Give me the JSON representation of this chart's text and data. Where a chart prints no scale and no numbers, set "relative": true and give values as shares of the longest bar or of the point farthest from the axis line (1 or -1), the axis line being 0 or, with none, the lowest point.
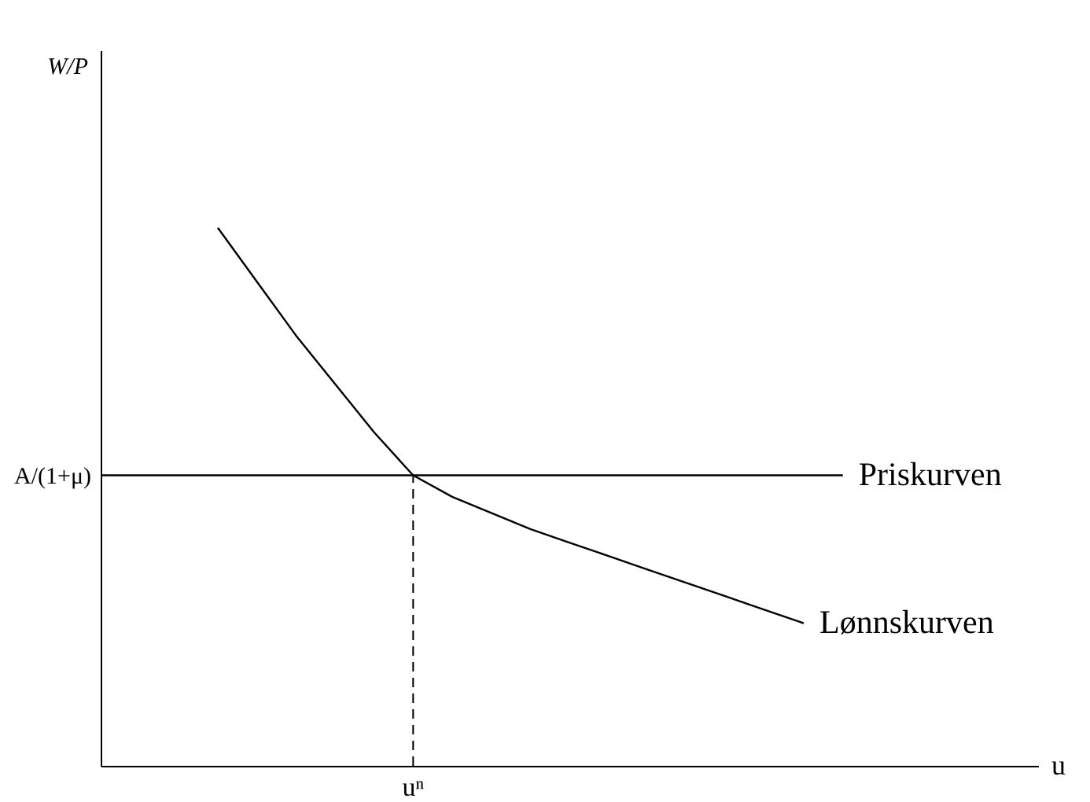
{
  "chart_data": {
    "type": "line",
    "relative": true,
    "xlabel": "u",
    "marker": "none",
    "line_style": "solid",
    "categories": [
      null,
      null,
      null,
      null,
      null,
      null,
      null,
      null,
      null,
      null,
      null,
      null,
      null,
      null,
      null,
      null,
      null,
      null,
      null,
      null,
      null,
      null,
      null,
      null,
      null
    ],
    "series": [
      {
        "name": "Lønnskurven",
        "color": "#000000",
        "values": [
          null,
          null,
          null,
          1.0,
          0.9,
          0.8,
          0.71,
          0.62,
          0.54,
          0.5,
          0.47,
          0.44,
          0.415,
          0.39,
          0.365,
          0.34,
          0.315,
          0.29,
          0.265,
          null,
          null,
          null,
          null,
          null,
          null
        ]
      },
      {
        "name": "Priskurven",
        "color": "#000000",
        "values": [
          0.54,
          0.54,
          0.54,
          0.54,
          0.54,
          0.54,
          0.54,
          0.54,
          0.54,
          0.54,
          0.54,
          0.54,
          0.54,
          0.54,
          0.54,
          0.54,
          0.54,
          0.54,
          0.54,
          0.54,
          null,
          null,
          null,
          null,
          null
        ]
      }
    ],
    "annotations": [
      "W/P",
      "A/(1+μ)",
      "uⁿ"
    ]
  }
}
